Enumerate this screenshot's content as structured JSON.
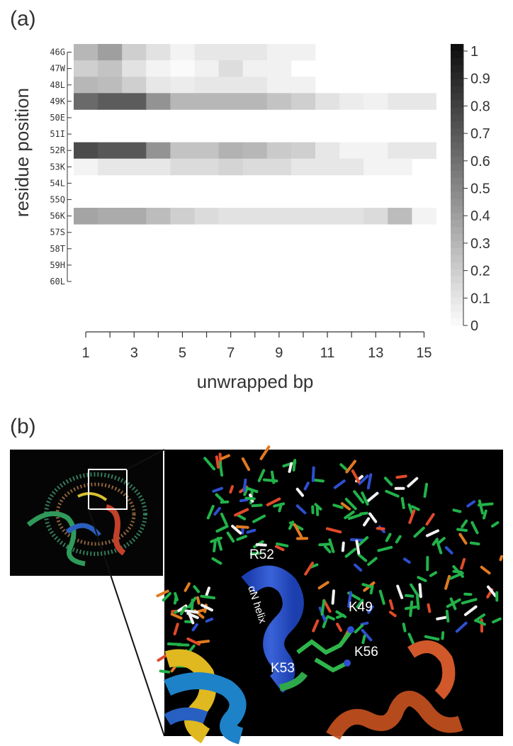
{
  "panel_a_label": "(a)",
  "panel_b_label": "(b)",
  "chart_data": {
    "type": "heatmap",
    "ylabel": "residue position",
    "xlabel": "unwrapped bp",
    "rows": [
      "46G",
      "47W",
      "48L",
      "49K",
      "50E",
      "51I",
      "52R",
      "53K",
      "54L",
      "55Q",
      "56K",
      "57S",
      "58T",
      "59H",
      "60L"
    ],
    "columns": [
      1,
      2,
      3,
      4,
      5,
      6,
      7,
      8,
      9,
      10,
      11,
      12,
      13,
      14,
      15
    ],
    "x_tick_labels": [
      "1",
      "3",
      "5",
      "7",
      "9",
      "11",
      "13",
      "15"
    ],
    "values": [
      [
        0.3,
        0.4,
        0.2,
        0.12,
        0.05,
        0.1,
        0.1,
        0.1,
        0.06,
        0.06,
        0.0,
        0.0,
        0.0,
        0.0,
        0.0
      ],
      [
        0.2,
        0.25,
        0.12,
        0.05,
        0.02,
        0.06,
        0.14,
        0.06,
        0.06,
        0.0,
        0.0,
        0.0,
        0.0,
        0.0,
        0.0
      ],
      [
        0.3,
        0.28,
        0.2,
        0.1,
        0.08,
        0.1,
        0.1,
        0.1,
        0.06,
        0.06,
        0.0,
        0.0,
        0.0,
        0.0,
        0.0
      ],
      [
        0.62,
        0.68,
        0.68,
        0.45,
        0.3,
        0.3,
        0.3,
        0.3,
        0.25,
        0.2,
        0.12,
        0.08,
        0.06,
        0.1,
        0.1
      ],
      [
        0,
        0,
        0,
        0,
        0,
        0,
        0,
        0,
        0,
        0,
        0,
        0,
        0,
        0,
        0
      ],
      [
        0,
        0,
        0,
        0,
        0,
        0,
        0,
        0,
        0,
        0,
        0,
        0,
        0,
        0,
        0
      ],
      [
        0.75,
        0.7,
        0.7,
        0.45,
        0.25,
        0.25,
        0.32,
        0.3,
        0.22,
        0.2,
        0.1,
        0.05,
        0.05,
        0.1,
        0.1
      ],
      [
        0.05,
        0.1,
        0.1,
        0.1,
        0.15,
        0.15,
        0.18,
        0.15,
        0.15,
        0.1,
        0.1,
        0.1,
        0.05,
        0.05,
        0.0
      ],
      [
        0,
        0,
        0,
        0,
        0,
        0,
        0,
        0,
        0,
        0,
        0,
        0,
        0,
        0,
        0
      ],
      [
        0,
        0,
        0,
        0,
        0,
        0,
        0,
        0,
        0,
        0,
        0,
        0,
        0,
        0,
        0
      ],
      [
        0.38,
        0.35,
        0.35,
        0.28,
        0.2,
        0.15,
        0.12,
        0.12,
        0.12,
        0.12,
        0.12,
        0.12,
        0.15,
        0.28,
        0.05
      ],
      [
        0,
        0,
        0,
        0,
        0,
        0,
        0,
        0,
        0,
        0,
        0,
        0,
        0,
        0,
        0
      ],
      [
        0,
        0,
        0,
        0,
        0,
        0,
        0,
        0,
        0,
        0,
        0,
        0,
        0,
        0,
        0
      ],
      [
        0,
        0,
        0,
        0,
        0,
        0,
        0,
        0,
        0,
        0,
        0,
        0,
        0,
        0,
        0
      ],
      [
        0,
        0,
        0,
        0,
        0,
        0,
        0,
        0,
        0,
        0,
        0,
        0,
        0,
        0,
        0
      ]
    ],
    "colorbar": {
      "min": 0,
      "max": 1,
      "tick_labels": [
        "1",
        "0.9",
        "0.8",
        "0.7",
        "0.6",
        "0.5",
        "0.4",
        "0.3",
        "0.2",
        "0.1",
        "0"
      ]
    }
  },
  "panel_b": {
    "helix_label": "αN helix",
    "residue_labels": [
      "R52",
      "K49",
      "K56",
      "K53"
    ]
  }
}
